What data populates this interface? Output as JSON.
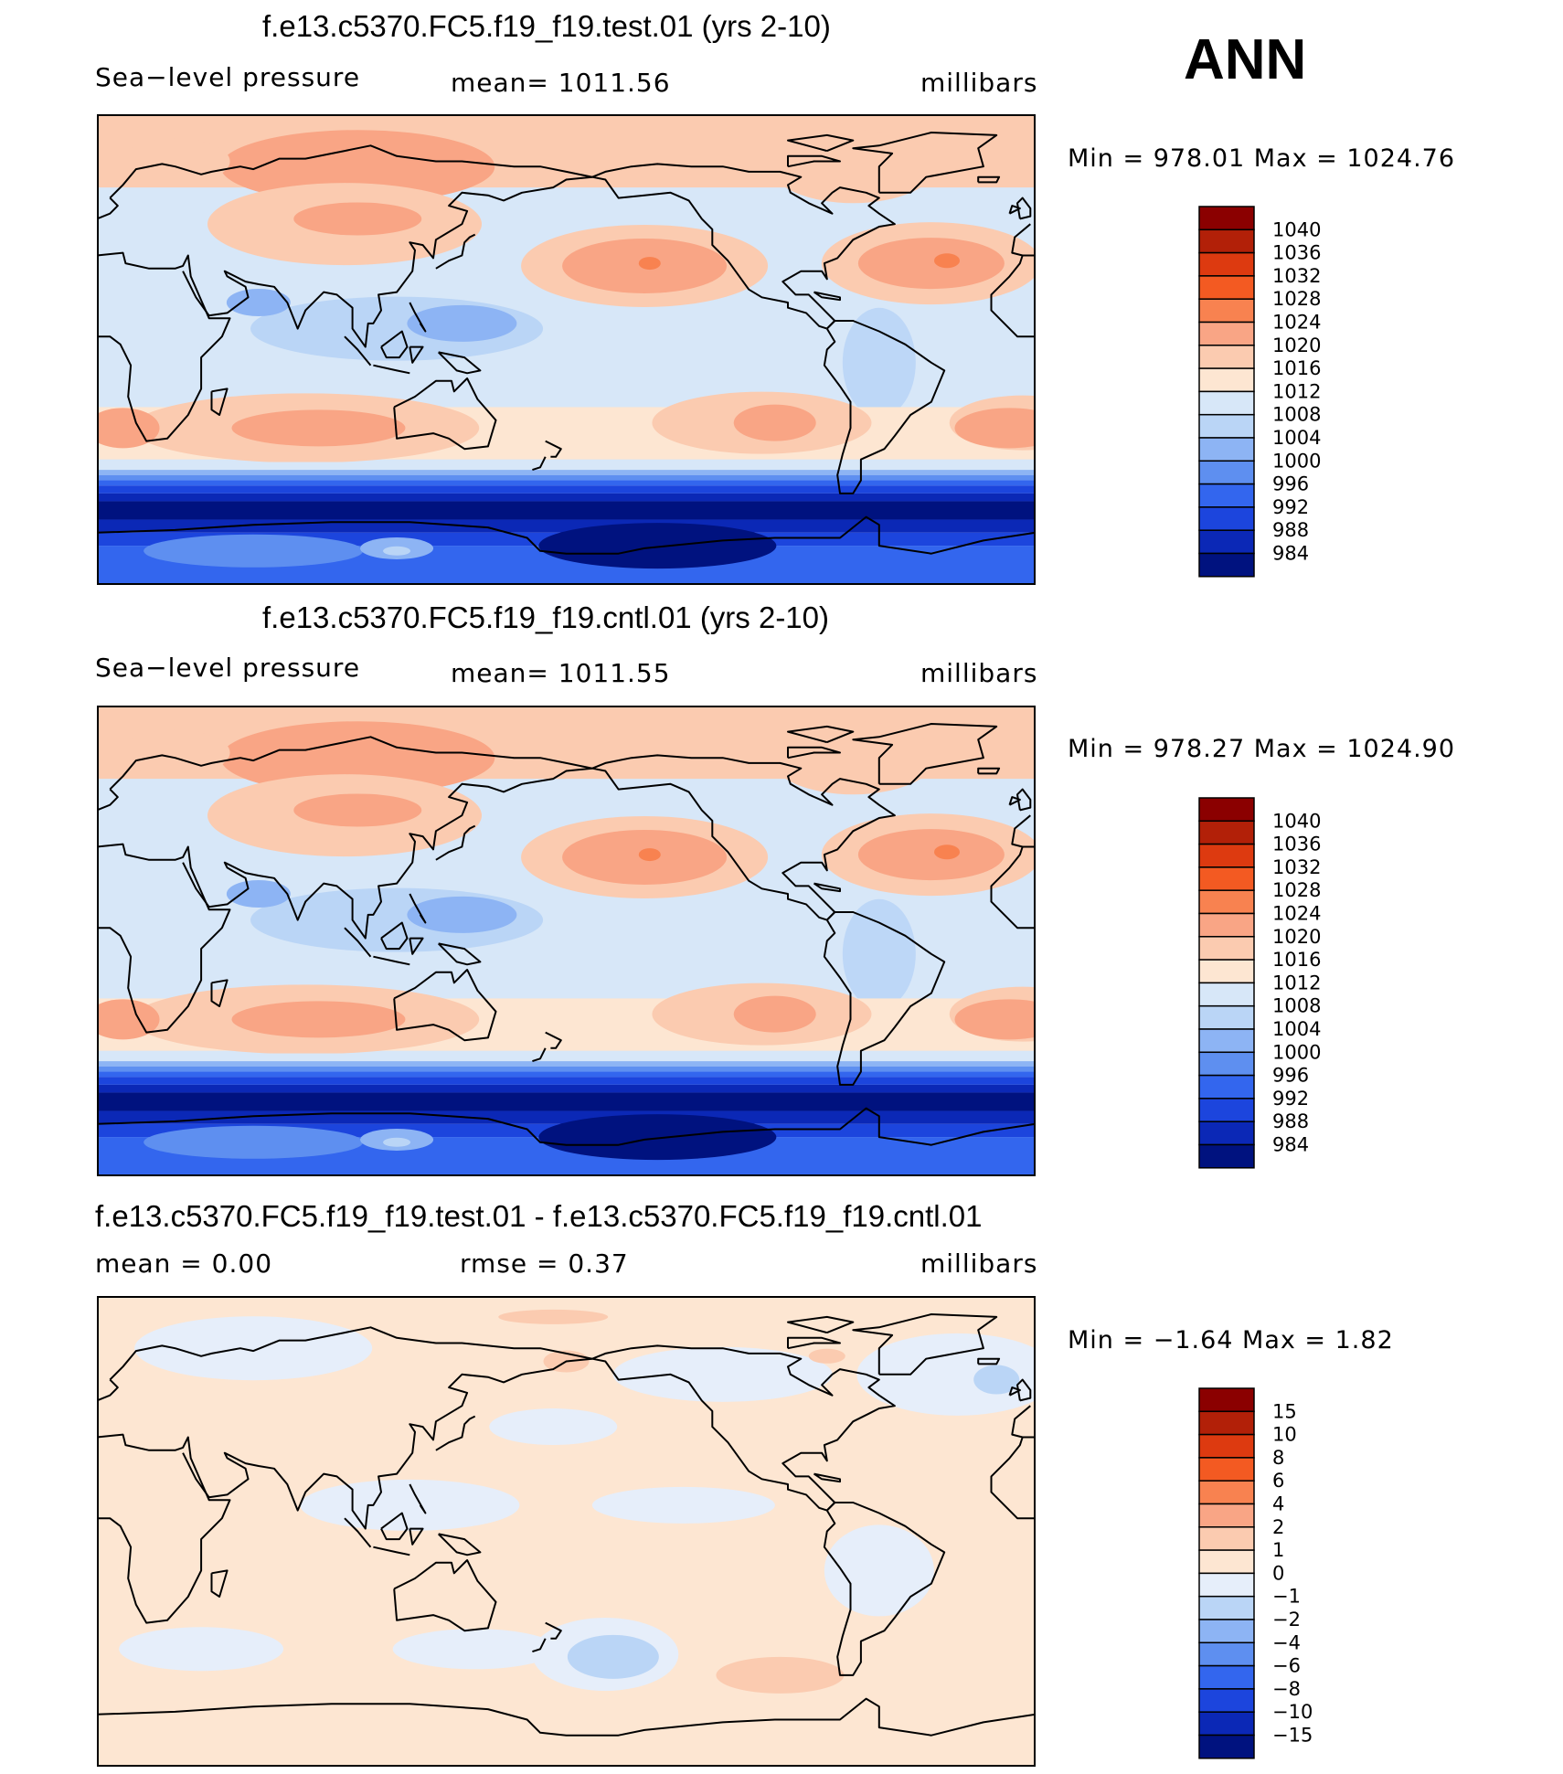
{
  "season": "ANN",
  "panels": [
    {
      "title": "f.e13.c5370.FC5.f19_f19.test.01 (yrs 2-10)",
      "left_label": "Sea−level pressure",
      "mid_label": "mean=  1011.56",
      "units": "millibars",
      "minmax": "Min  =  978.01  Max  =  1024.76",
      "colorbar": {
        "ticks": [
          "1040",
          "1036",
          "1032",
          "1028",
          "1024",
          "1020",
          "1016",
          "1012",
          "1008",
          "1004",
          "1000",
          "996",
          "992",
          "988",
          "984"
        ],
        "colors": [
          "#8b0000",
          "#b22008",
          "#dd3a10",
          "#f35a22",
          "#f88250",
          "#f9a585",
          "#fbcbb0",
          "#fde6d2",
          "#d7e7f8",
          "#bad5f6",
          "#8db4f4",
          "#5e8ff0",
          "#3366ee",
          "#1c45dd",
          "#0b28b6",
          "#00127f"
        ]
      },
      "map": {
        "variant": "full"
      }
    },
    {
      "title": "f.e13.c5370.FC5.f19_f19.cntl.01 (yrs 2-10)",
      "left_label": "Sea−level pressure",
      "mid_label": "mean=  1011.55",
      "units": "millibars",
      "minmax": "Min  =  978.27  Max  =  1024.90",
      "colorbar": {
        "ticks": [
          "1040",
          "1036",
          "1032",
          "1028",
          "1024",
          "1020",
          "1016",
          "1012",
          "1008",
          "1004",
          "1000",
          "996",
          "992",
          "988",
          "984"
        ],
        "colors": [
          "#8b0000",
          "#b22008",
          "#dd3a10",
          "#f35a22",
          "#f88250",
          "#f9a585",
          "#fbcbb0",
          "#fde6d2",
          "#d7e7f8",
          "#bad5f6",
          "#8db4f4",
          "#5e8ff0",
          "#3366ee",
          "#1c45dd",
          "#0b28b6",
          "#00127f"
        ]
      },
      "map": {
        "variant": "full"
      }
    },
    {
      "title": "f.e13.c5370.FC5.f19_f19.test.01 - f.e13.c5370.FC5.f19_f19.cntl.01",
      "left_label": "mean  =      0.00",
      "mid_label": "rmse  =      0.37",
      "units": "millibars",
      "minmax": "Min  =    −1.64  Max  =       1.82",
      "colorbar": {
        "ticks": [
          "15",
          "10",
          "8",
          "6",
          "4",
          "2",
          "1",
          "0",
          "−1",
          "−2",
          "−4",
          "−6",
          "−8",
          "−10",
          "−15"
        ],
        "colors": [
          "#8b0000",
          "#b22008",
          "#dd3a10",
          "#f35a22",
          "#f88250",
          "#f9a585",
          "#fbcbb0",
          "#fde6d2",
          "#e6eefa",
          "#bad5f6",
          "#8db4f4",
          "#5e8ff0",
          "#3366ee",
          "#1c45dd",
          "#0b28b6",
          "#00127f"
        ]
      },
      "map": {
        "variant": "diff"
      }
    }
  ]
}
